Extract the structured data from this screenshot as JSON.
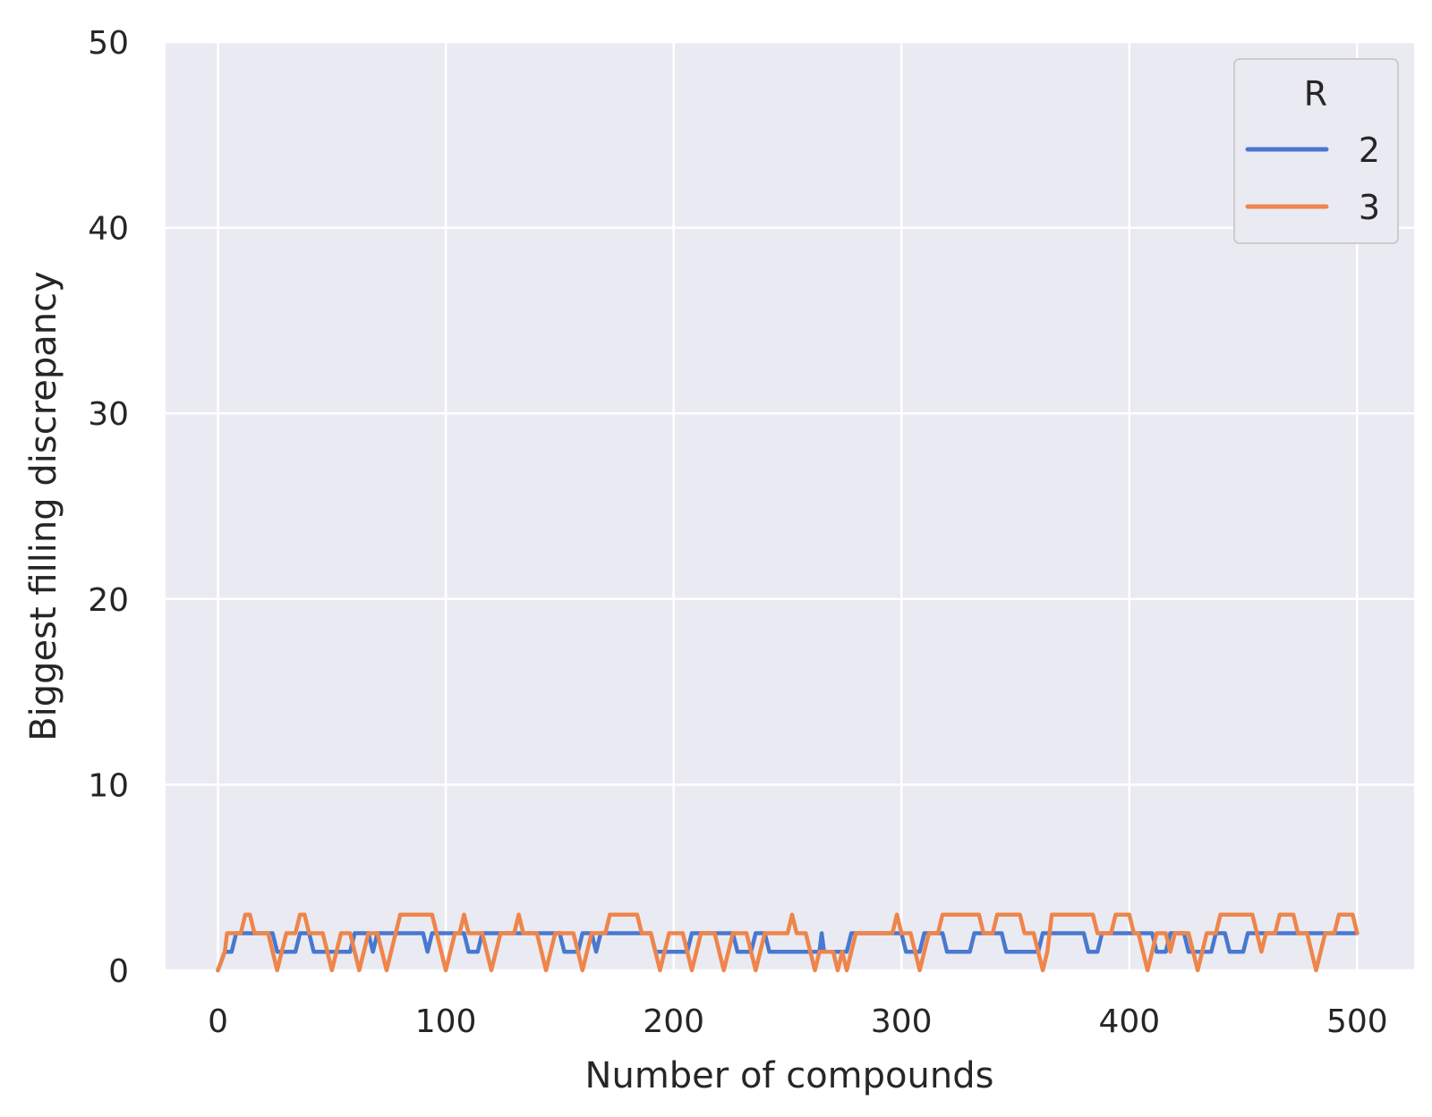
{
  "chart_data": {
    "type": "line",
    "title": "",
    "xlabel": "Number of compounds",
    "ylabel": "Biggest filling discrepancy",
    "xlim": [
      -23,
      525
    ],
    "ylim": [
      0,
      50
    ],
    "xticks": [
      0,
      100,
      200,
      300,
      400,
      500
    ],
    "yticks": [
      0,
      10,
      20,
      30,
      40,
      50
    ],
    "xtick_labels": [
      "0",
      "100",
      "200",
      "300",
      "400",
      "500"
    ],
    "ytick_labels": [
      "0",
      "10",
      "20",
      "30",
      "40",
      "50"
    ],
    "grid": true,
    "legend": {
      "title": "R",
      "position": "top-right"
    },
    "series": [
      {
        "name": "2",
        "color": "#4878d0",
        "points": [
          [
            0,
            0
          ],
          [
            3,
            1
          ],
          [
            6,
            1
          ],
          [
            8,
            2
          ],
          [
            24,
            2
          ],
          [
            26,
            1
          ],
          [
            34,
            1
          ],
          [
            36,
            2
          ],
          [
            40,
            2
          ],
          [
            42,
            1
          ],
          [
            58,
            1
          ],
          [
            60,
            2
          ],
          [
            66,
            2
          ],
          [
            68,
            1
          ],
          [
            70,
            2
          ],
          [
            90,
            2
          ],
          [
            92,
            1
          ],
          [
            94,
            2
          ],
          [
            108,
            2
          ],
          [
            110,
            1
          ],
          [
            114,
            1
          ],
          [
            116,
            2
          ],
          [
            150,
            2
          ],
          [
            152,
            1
          ],
          [
            158,
            1
          ],
          [
            160,
            2
          ],
          [
            164,
            2
          ],
          [
            166,
            1
          ],
          [
            168,
            2
          ],
          [
            190,
            2
          ],
          [
            192,
            1
          ],
          [
            206,
            1
          ],
          [
            208,
            2
          ],
          [
            226,
            2
          ],
          [
            228,
            1
          ],
          [
            234,
            1
          ],
          [
            236,
            2
          ],
          [
            240,
            2
          ],
          [
            242,
            1
          ],
          [
            264,
            1
          ],
          [
            265,
            2
          ],
          [
            266,
            1
          ],
          [
            276,
            1
          ],
          [
            278,
            2
          ],
          [
            300,
            2
          ],
          [
            302,
            1
          ],
          [
            308,
            1
          ],
          [
            310,
            2
          ],
          [
            318,
            2
          ],
          [
            320,
            1
          ],
          [
            330,
            1
          ],
          [
            332,
            2
          ],
          [
            344,
            2
          ],
          [
            346,
            1
          ],
          [
            360,
            1
          ],
          [
            362,
            2
          ],
          [
            380,
            2
          ],
          [
            382,
            1
          ],
          [
            386,
            1
          ],
          [
            388,
            2
          ],
          [
            410,
            2
          ],
          [
            412,
            1
          ],
          [
            416,
            1
          ],
          [
            418,
            2
          ],
          [
            424,
            2
          ],
          [
            426,
            1
          ],
          [
            436,
            1
          ],
          [
            438,
            2
          ],
          [
            442,
            2
          ],
          [
            444,
            1
          ],
          [
            450,
            1
          ],
          [
            452,
            2
          ],
          [
            500,
            2
          ]
        ]
      },
      {
        "name": "3",
        "color": "#ee854a",
        "points": [
          [
            0,
            0
          ],
          [
            3,
            1
          ],
          [
            4,
            2
          ],
          [
            10,
            2
          ],
          [
            12,
            3
          ],
          [
            14,
            3
          ],
          [
            16,
            2
          ],
          [
            22,
            2
          ],
          [
            24,
            1
          ],
          [
            26,
            0
          ],
          [
            28,
            1
          ],
          [
            30,
            2
          ],
          [
            34,
            2
          ],
          [
            36,
            3
          ],
          [
            38,
            3
          ],
          [
            40,
            2
          ],
          [
            46,
            2
          ],
          [
            48,
            1
          ],
          [
            50,
            0
          ],
          [
            52,
            1
          ],
          [
            54,
            2
          ],
          [
            58,
            2
          ],
          [
            60,
            1
          ],
          [
            62,
            0
          ],
          [
            64,
            1
          ],
          [
            66,
            2
          ],
          [
            70,
            2
          ],
          [
            72,
            1
          ],
          [
            74,
            0
          ],
          [
            76,
            1
          ],
          [
            78,
            2
          ],
          [
            80,
            3
          ],
          [
            94,
            3
          ],
          [
            96,
            2
          ],
          [
            98,
            1
          ],
          [
            100,
            0
          ],
          [
            102,
            1
          ],
          [
            104,
            2
          ],
          [
            106,
            2
          ],
          [
            108,
            3
          ],
          [
            110,
            2
          ],
          [
            116,
            2
          ],
          [
            118,
            1
          ],
          [
            120,
            0
          ],
          [
            122,
            1
          ],
          [
            124,
            2
          ],
          [
            130,
            2
          ],
          [
            132,
            3
          ],
          [
            134,
            2
          ],
          [
            140,
            2
          ],
          [
            142,
            1
          ],
          [
            144,
            0
          ],
          [
            146,
            1
          ],
          [
            148,
            2
          ],
          [
            156,
            2
          ],
          [
            158,
            1
          ],
          [
            160,
            0
          ],
          [
            162,
            1
          ],
          [
            164,
            2
          ],
          [
            170,
            2
          ],
          [
            172,
            3
          ],
          [
            184,
            3
          ],
          [
            186,
            2
          ],
          [
            190,
            2
          ],
          [
            192,
            1
          ],
          [
            194,
            0
          ],
          [
            196,
            1
          ],
          [
            198,
            2
          ],
          [
            204,
            2
          ],
          [
            206,
            1
          ],
          [
            208,
            0
          ],
          [
            210,
            1
          ],
          [
            212,
            2
          ],
          [
            218,
            2
          ],
          [
            220,
            1
          ],
          [
            222,
            0
          ],
          [
            224,
            1
          ],
          [
            226,
            2
          ],
          [
            232,
            2
          ],
          [
            234,
            1
          ],
          [
            236,
            0
          ],
          [
            238,
            1
          ],
          [
            240,
            2
          ],
          [
            250,
            2
          ],
          [
            252,
            3
          ],
          [
            254,
            2
          ],
          [
            258,
            2
          ],
          [
            260,
            1
          ],
          [
            262,
            0
          ],
          [
            264,
            1
          ],
          [
            270,
            1
          ],
          [
            272,
            0
          ],
          [
            274,
            1
          ],
          [
            276,
            0
          ],
          [
            278,
            1
          ],
          [
            280,
            2
          ],
          [
            296,
            2
          ],
          [
            298,
            3
          ],
          [
            300,
            2
          ],
          [
            304,
            2
          ],
          [
            306,
            1
          ],
          [
            308,
            0
          ],
          [
            310,
            1
          ],
          [
            312,
            2
          ],
          [
            316,
            2
          ],
          [
            318,
            3
          ],
          [
            334,
            3
          ],
          [
            336,
            2
          ],
          [
            340,
            2
          ],
          [
            342,
            3
          ],
          [
            352,
            3
          ],
          [
            354,
            2
          ],
          [
            358,
            2
          ],
          [
            360,
            1
          ],
          [
            362,
            0
          ],
          [
            364,
            1
          ],
          [
            366,
            3
          ],
          [
            384,
            3
          ],
          [
            386,
            2
          ],
          [
            392,
            2
          ],
          [
            394,
            3
          ],
          [
            400,
            3
          ],
          [
            402,
            2
          ],
          [
            404,
            2
          ],
          [
            406,
            1
          ],
          [
            408,
            0
          ],
          [
            410,
            1
          ],
          [
            412,
            2
          ],
          [
            416,
            2
          ],
          [
            418,
            1
          ],
          [
            420,
            2
          ],
          [
            426,
            2
          ],
          [
            428,
            1
          ],
          [
            430,
            0
          ],
          [
            432,
            1
          ],
          [
            434,
            2
          ],
          [
            438,
            2
          ],
          [
            440,
            3
          ],
          [
            454,
            3
          ],
          [
            456,
            2
          ],
          [
            458,
            1
          ],
          [
            460,
            2
          ],
          [
            464,
            2
          ],
          [
            466,
            3
          ],
          [
            472,
            3
          ],
          [
            474,
            2
          ],
          [
            478,
            2
          ],
          [
            480,
            1
          ],
          [
            482,
            0
          ],
          [
            484,
            1
          ],
          [
            486,
            2
          ],
          [
            490,
            2
          ],
          [
            492,
            3
          ],
          [
            498,
            3
          ],
          [
            500,
            2
          ]
        ]
      }
    ]
  }
}
